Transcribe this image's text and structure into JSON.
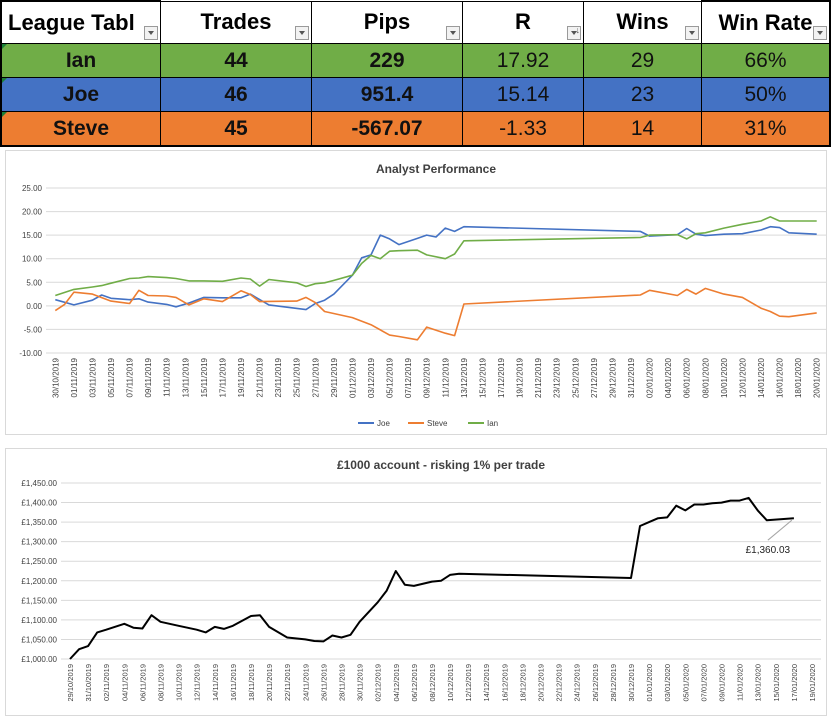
{
  "league_table": {
    "headers": [
      "League Tabl",
      "Trades",
      "Pips",
      "R",
      "Wins",
      "Win Rate"
    ],
    "rows": [
      {
        "name": "Ian",
        "trades": "44",
        "pips": "229",
        "r": "17.92",
        "wins": "29",
        "win_rate": "66%",
        "color": "#70ad47"
      },
      {
        "name": "Joe",
        "trades": "46",
        "pips": "951.4",
        "r": "15.14",
        "wins": "23",
        "win_rate": "50%",
        "color": "#4472c4"
      },
      {
        "name": "Steve",
        "trades": "45",
        "pips": "-567.07",
        "r": "-1.33",
        "wins": "14",
        "win_rate": "31%",
        "color": "#ed7d31"
      }
    ]
  },
  "chart_data": [
    {
      "type": "line",
      "title": "Analyst Performance",
      "xlabel": "",
      "ylabel": "",
      "ylim": [
        -10,
        25
      ],
      "yticks": [
        "25.00",
        "20.00",
        "15.00",
        "10.00",
        "5.00",
        "0.00",
        "-5.00",
        "-10.00"
      ],
      "xticks": [
        "30/10/2019",
        "01/11/2019",
        "03/11/2019",
        "05/11/2019",
        "07/11/2019",
        "09/11/2019",
        "11/11/2019",
        "13/11/2019",
        "15/11/2019",
        "17/11/2019",
        "19/11/2019",
        "21/11/2019",
        "23/11/2019",
        "25/11/2019",
        "27/11/2019",
        "29/11/2019",
        "01/12/2019",
        "03/12/2019",
        "05/12/2019",
        "07/12/2019",
        "09/12/2019",
        "11/12/2019",
        "13/12/2019",
        "15/12/2019",
        "17/12/2019",
        "19/12/2019",
        "21/12/2019",
        "23/12/2019",
        "25/12/2019",
        "27/12/2019",
        "29/12/2019",
        "31/12/2019",
        "02/01/2020",
        "04/01/2020",
        "06/01/2020",
        "08/01/2020",
        "10/01/2020",
        "12/01/2020",
        "14/01/2020",
        "16/01/2020",
        "18/01/2020",
        "20/01/2020"
      ],
      "grid": true,
      "legend": "bottom",
      "series": [
        {
          "name": "Joe",
          "color": "#4472c4",
          "points": [
            [
              0,
              1.3
            ],
            [
              1,
              0.2
            ],
            [
              2,
              1.2
            ],
            [
              2.5,
              2.3
            ],
            [
              3,
              1.6
            ],
            [
              4,
              1.3
            ],
            [
              4.5,
              1.5
            ],
            [
              5,
              0.8
            ],
            [
              6,
              0.3
            ],
            [
              6.5,
              -0.2
            ],
            [
              7.2,
              0.6
            ],
            [
              8,
              1.8
            ],
            [
              9,
              1.7
            ],
            [
              10,
              1.7
            ],
            [
              10.5,
              2.5
            ],
            [
              11.5,
              0.2
            ],
            [
              13.5,
              -0.8
            ],
            [
              14,
              0.5
            ],
            [
              14.5,
              1.2
            ],
            [
              15,
              2.5
            ],
            [
              16,
              6.5
            ],
            [
              16.5,
              10.2
            ],
            [
              17,
              10.8
            ],
            [
              17.5,
              15.0
            ],
            [
              18,
              14.2
            ],
            [
              18.5,
              13
            ],
            [
              19.5,
              14.3
            ],
            [
              20,
              15
            ],
            [
              20.5,
              14.6
            ],
            [
              21,
              16.5
            ],
            [
              21.5,
              15.8
            ],
            [
              22,
              16.8
            ],
            [
              31.5,
              15.8
            ],
            [
              32,
              14.8
            ],
            [
              33.5,
              15.1
            ],
            [
              34,
              16.4
            ],
            [
              34.5,
              15.2
            ],
            [
              35,
              14.9
            ],
            [
              36,
              15.2
            ],
            [
              37,
              15.3
            ],
            [
              38,
              16.1
            ],
            [
              38.5,
              16.8
            ],
            [
              39,
              16.6
            ],
            [
              39.5,
              15.5
            ],
            [
              41,
              15.2
            ]
          ]
        },
        {
          "name": "Steve",
          "color": "#ed7d31",
          "points": [
            [
              0,
              -1.0
            ],
            [
              0.5,
              0.3
            ],
            [
              1,
              2.9
            ],
            [
              2,
              2.5
            ],
            [
              3,
              1.0
            ],
            [
              4,
              0.5
            ],
            [
              4.5,
              3.3
            ],
            [
              5,
              2.2
            ],
            [
              6,
              2.1
            ],
            [
              6.5,
              1.8
            ],
            [
              7.2,
              0.2
            ],
            [
              8,
              1.5
            ],
            [
              9,
              0.9
            ],
            [
              10,
              3.2
            ],
            [
              10.5,
              2.4
            ],
            [
              11,
              0.9
            ],
            [
              13,
              1.0
            ],
            [
              13.5,
              1.8
            ],
            [
              14,
              0.7
            ],
            [
              14.5,
              -1.2
            ],
            [
              16,
              -2.5
            ],
            [
              17,
              -4.0
            ],
            [
              18,
              -6.2
            ],
            [
              18.5,
              -6.5
            ],
            [
              19.5,
              -7.2
            ],
            [
              20,
              -4.5
            ],
            [
              21,
              -5.8
            ],
            [
              21.5,
              -6.3
            ],
            [
              22,
              0.4
            ],
            [
              31.5,
              2.3
            ],
            [
              32,
              3.3
            ],
            [
              33.5,
              2.2
            ],
            [
              34,
              3.5
            ],
            [
              34.5,
              2.5
            ],
            [
              35,
              3.7
            ],
            [
              36,
              2.5
            ],
            [
              37,
              1.8
            ],
            [
              38,
              -0.5
            ],
            [
              38.5,
              -1.2
            ],
            [
              39,
              -2.2
            ],
            [
              39.5,
              -2.3
            ],
            [
              41,
              -1.5
            ]
          ]
        },
        {
          "name": "Ian",
          "color": "#70ad47",
          "points": [
            [
              0,
              2.2
            ],
            [
              1,
              3.5
            ],
            [
              2,
              4.0
            ],
            [
              2.5,
              4.3
            ],
            [
              3,
              4.8
            ],
            [
              4,
              5.8
            ],
            [
              4.5,
              5.9
            ],
            [
              5,
              6.2
            ],
            [
              6,
              6.0
            ],
            [
              6.5,
              5.8
            ],
            [
              7.2,
              5.3
            ],
            [
              8,
              5.3
            ],
            [
              9,
              5.2
            ],
            [
              10,
              5.9
            ],
            [
              10.5,
              5.7
            ],
            [
              11,
              4.2
            ],
            [
              11.5,
              5.6
            ],
            [
              13,
              4.9
            ],
            [
              13.5,
              4.1
            ],
            [
              14,
              4.7
            ],
            [
              14.5,
              4.9
            ],
            [
              15,
              5.4
            ],
            [
              16,
              6.5
            ],
            [
              16.5,
              9.0
            ],
            [
              17,
              10.7
            ],
            [
              17.5,
              10.0
            ],
            [
              18,
              11.6
            ],
            [
              18.5,
              11.7
            ],
            [
              19.5,
              11.8
            ],
            [
              20,
              10.8
            ],
            [
              21,
              10.0
            ],
            [
              21.5,
              11.0
            ],
            [
              22,
              13.8
            ],
            [
              31.5,
              14.5
            ],
            [
              32,
              15.0
            ],
            [
              33.5,
              15.1
            ],
            [
              34,
              14.2
            ],
            [
              34.5,
              15.3
            ],
            [
              35,
              15.5
            ],
            [
              36,
              16.5
            ],
            [
              37,
              17.3
            ],
            [
              38,
              18.0
            ],
            [
              38.5,
              18.9
            ],
            [
              39,
              18.0
            ],
            [
              39.5,
              18.0
            ],
            [
              41,
              18.0
            ]
          ]
        }
      ]
    },
    {
      "type": "line",
      "title": "£1000 account - risking 1% per trade",
      "xlabel": "",
      "ylabel": "",
      "ylim": [
        1000,
        1450
      ],
      "yticks": [
        "£1,450.00",
        "£1,400.00",
        "£1,350.00",
        "£1,300.00",
        "£1,250.00",
        "£1,200.00",
        "£1,150.00",
        "£1,100.00",
        "£1,050.00",
        "£1,000.00"
      ],
      "xticks": [
        "29/10/2019",
        "31/10/2019",
        "02/11/2019",
        "04/11/2019",
        "06/11/2019",
        "08/11/2019",
        "10/11/2019",
        "12/11/2019",
        "14/11/2019",
        "16/11/2019",
        "18/11/2019",
        "20/11/2019",
        "22/11/2019",
        "24/11/2019",
        "26/11/2019",
        "28/11/2019",
        "30/11/2019",
        "02/12/2019",
        "04/12/2019",
        "06/12/2019",
        "08/12/2019",
        "10/12/2019",
        "12/12/2019",
        "14/12/2019",
        "16/12/2019",
        "18/12/2019",
        "20/12/2019",
        "22/12/2019",
        "24/12/2019",
        "26/12/2019",
        "28/12/2019",
        "30/12/2019",
        "01/01/2020",
        "03/01/2020",
        "05/01/2020",
        "07/01/2020",
        "09/01/2020",
        "11/01/2020",
        "13/01/2020",
        "15/01/2020",
        "17/01/2020",
        "19/01/2020"
      ],
      "grid": true,
      "annotation": "£1,360.03",
      "series": [
        {
          "name": "",
          "color": "#000000",
          "points": [
            [
              0,
              1000
            ],
            [
              0.5,
              1025
            ],
            [
              1,
              1033
            ],
            [
              1.5,
              1068
            ],
            [
              2,
              1075
            ],
            [
              3,
              1090
            ],
            [
              3.5,
              1080
            ],
            [
              4,
              1078
            ],
            [
              4.5,
              1112
            ],
            [
              5,
              1095
            ],
            [
              6,
              1085
            ],
            [
              7,
              1075
            ],
            [
              7.5,
              1068
            ],
            [
              8,
              1082
            ],
            [
              8.5,
              1077
            ],
            [
              9,
              1085
            ],
            [
              10,
              1110
            ],
            [
              10.5,
              1112
            ],
            [
              11,
              1082
            ],
            [
              12,
              1055
            ],
            [
              13,
              1050
            ],
            [
              13.5,
              1046
            ],
            [
              14,
              1045
            ],
            [
              14.5,
              1060
            ],
            [
              15,
              1055
            ],
            [
              15.5,
              1062
            ],
            [
              16,
              1095
            ],
            [
              17,
              1145
            ],
            [
              17.5,
              1175
            ],
            [
              18,
              1225
            ],
            [
              18.5,
              1190
            ],
            [
              19,
              1187
            ],
            [
              20,
              1198
            ],
            [
              20.5,
              1200
            ],
            [
              21,
              1215
            ],
            [
              21.5,
              1218
            ],
            [
              31,
              1207
            ],
            [
              31.5,
              1340
            ],
            [
              32,
              1350
            ],
            [
              32.5,
              1360
            ],
            [
              33,
              1362
            ],
            [
              33.5,
              1392
            ],
            [
              34,
              1380
            ],
            [
              34.5,
              1395
            ],
            [
              35,
              1395
            ],
            [
              35.5,
              1398
            ],
            [
              36,
              1400
            ],
            [
              36.5,
              1405
            ],
            [
              37,
              1405
            ],
            [
              37.5,
              1412
            ],
            [
              38,
              1380
            ],
            [
              38.5,
              1355
            ],
            [
              40,
              1360.03
            ]
          ]
        }
      ]
    }
  ]
}
